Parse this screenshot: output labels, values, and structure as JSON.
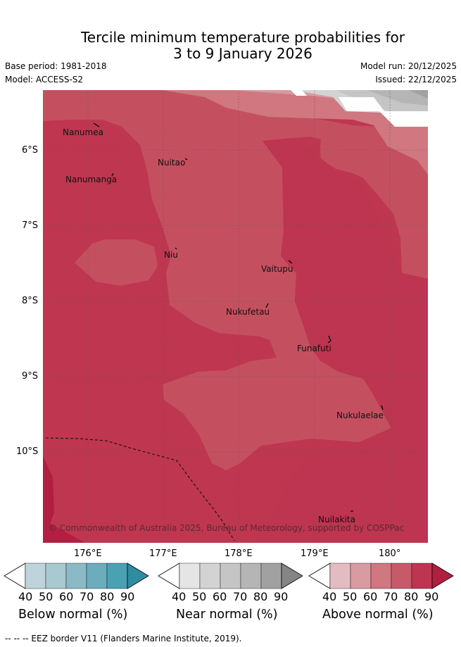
{
  "title": {
    "line1": "Tercile minimum temperature probabilities for",
    "line2": "3 to 9 January 2026"
  },
  "meta": {
    "base_period": "Base period: 1981-2018",
    "model": "Model: ACCESS-S2",
    "model_run": "Model run: 20/12/2025",
    "issued": "Issued: 22/12/2025"
  },
  "map": {
    "lat_labels": [
      "6°S",
      "7°S",
      "8°S",
      "9°S",
      "10°S"
    ],
    "lon_labels": [
      "176°E",
      "177°E",
      "178°E",
      "179°E",
      "180°"
    ],
    "copyright": "© Commonwealth of Australia 2025, Bureau of Meteorology, supported by COSPPac",
    "places": {
      "nanumea": "Nanumea",
      "nanumanga": "Nanumanga",
      "nuitao": "Nuitao",
      "niu": "Niu",
      "vaitupu": "Vaitupu",
      "nukufetau": "Nukufetau",
      "funafuti": "Funafuti",
      "nukulaelae": "Nukulaelae",
      "nuilakita": "Nuilakita"
    },
    "colors": {
      "above_60": "#d7767f",
      "above_70": "#c4505f",
      "above_80": "#bf3650",
      "above_90": "#b01f40",
      "near_50": "#d3d3d3",
      "near_70": "#a1a1a1"
    }
  },
  "colorbars": [
    {
      "name": "Below normal (%)",
      "ticks": [
        "40",
        "50",
        "60",
        "70",
        "80",
        "90"
      ],
      "colors": [
        "#ffffff",
        "#bed4da",
        "#a7c9cf",
        "#8bbac6",
        "#6cadbd",
        "#4aa1b3",
        "#2e8da0"
      ]
    },
    {
      "name": "Near normal (%)",
      "ticks": [
        "40",
        "50",
        "60",
        "70",
        "80",
        "90"
      ],
      "colors": [
        "#ffffff",
        "#e5e5e5",
        "#d3d3d3",
        "#c5c5c5",
        "#b5b5b5",
        "#a1a1a1",
        "#858585"
      ]
    },
    {
      "name": "Above normal (%)",
      "ticks": [
        "40",
        "50",
        "60",
        "70",
        "80",
        "90"
      ],
      "colors": [
        "#ffffff",
        "#e3bcc1",
        "#d99aa1",
        "#d0777f",
        "#c65a68",
        "#be3551",
        "#b01f40"
      ]
    }
  ],
  "footnote": "--  --  -- EEZ border V11 (Flanders Marine Institute, 2019)."
}
